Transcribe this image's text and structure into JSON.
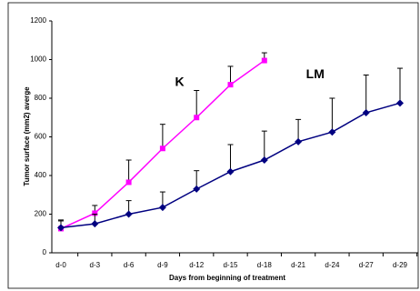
{
  "chart_data": {
    "type": "line",
    "categories": [
      "d-0",
      "d-3",
      "d-6",
      "d-9",
      "d-12",
      "d-15",
      "d-18",
      "d-21",
      "d-24",
      "d-27",
      "d-29"
    ],
    "series": [
      {
        "name": "K",
        "color": "#ff00ff",
        "marker": "square",
        "values": [
          125,
          205,
          365,
          540,
          700,
          870,
          995,
          null,
          null,
          null,
          null
        ],
        "errors": [
          40,
          40,
          115,
          125,
          140,
          95,
          40,
          null,
          null,
          null,
          null
        ]
      },
      {
        "name": "LM",
        "color": "#000080",
        "marker": "diamond",
        "values": [
          130,
          150,
          200,
          235,
          330,
          420,
          480,
          575,
          625,
          725,
          775
        ],
        "errors": [
          40,
          50,
          70,
          80,
          95,
          140,
          150,
          115,
          175,
          195,
          180
        ]
      }
    ],
    "annotations": [
      {
        "text": "K",
        "category": 3,
        "y": 880
      },
      {
        "text": "LM",
        "category": 7,
        "y": 920
      }
    ],
    "ylim": [
      0,
      1200
    ],
    "yticks": [
      0,
      200,
      400,
      600,
      800,
      1000,
      1200
    ],
    "ylabel": "Tumor surface (mm2) averge",
    "xlabel": "Days from beginning of treatment"
  }
}
